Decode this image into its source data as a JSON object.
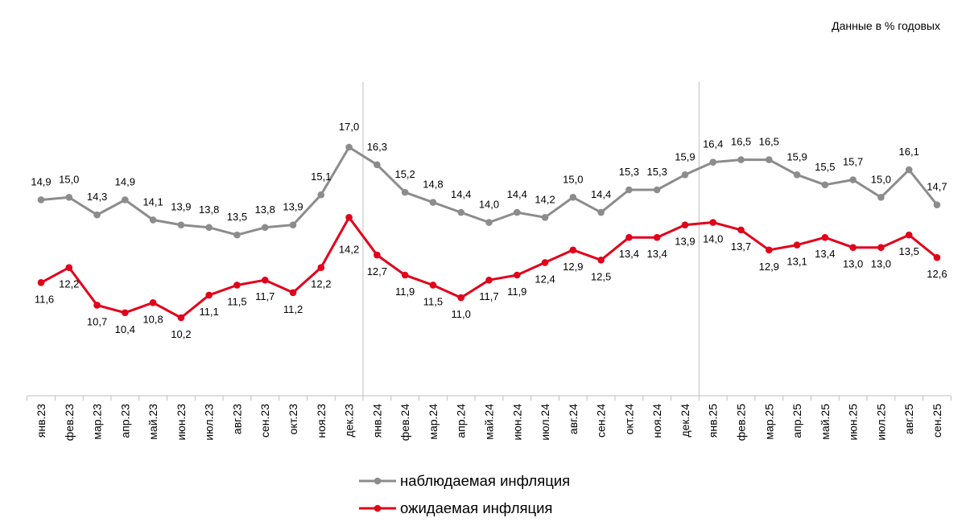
{
  "units_note": "Данные в % годовых",
  "chart_data": {
    "type": "line",
    "title": "",
    "xlabel": "",
    "ylabel": "",
    "ylim": [
      5,
      19
    ],
    "grid": false,
    "legend_position": "bottom",
    "categories": [
      "янв.23",
      "фев.23",
      "мар.23",
      "апр.23",
      "май.23",
      "июн.23",
      "июл.23",
      "авг.23",
      "сен.23",
      "окт.23",
      "ноя.23",
      "дек.23",
      "янв.24",
      "фев.24",
      "мар.24",
      "апр.24",
      "май.24",
      "июн.24",
      "июл.24",
      "авг.24",
      "сен.24",
      "окт.24",
      "ноя.24",
      "дек.24",
      "янв.25",
      "фев.25",
      "мар.25",
      "апр.25",
      "май.25",
      "июн.25",
      "июл.25",
      "авг.25",
      "сен.25"
    ],
    "year_separators": [
      "дек.23",
      "дек.24"
    ],
    "series": [
      {
        "name": "наблюдаемая инфляция",
        "color": "#8c8c8c",
        "values": [
          14.9,
          15.0,
          14.3,
          14.9,
          14.1,
          13.9,
          13.8,
          13.5,
          13.8,
          13.9,
          15.1,
          17.0,
          16.3,
          15.2,
          14.8,
          14.4,
          14.0,
          14.4,
          14.2,
          15.0,
          14.4,
          15.3,
          15.3,
          15.9,
          16.4,
          16.5,
          16.5,
          15.9,
          15.5,
          15.7,
          15.0,
          16.1,
          14.7
        ],
        "labels": [
          "14,9",
          "15,0",
          "14,3",
          "14,9",
          "14,1",
          "13,9",
          "13,8",
          "13,5",
          "13,8",
          "13,9",
          "15,1",
          "17,0",
          "16,3",
          "15,2",
          "14,8",
          "14,4",
          "14,0",
          "14,4",
          "14,2",
          "15,0",
          "14,4",
          "15,3",
          "15,3",
          "15,9",
          "16,4",
          "16,5",
          "16,5",
          "15,9",
          "15,5",
          "15,7",
          "15,0",
          "16,1",
          "14,7"
        ]
      },
      {
        "name": "ожидаемая инфляция",
        "color": "#e2001a",
        "values": [
          11.6,
          12.2,
          10.7,
          10.4,
          10.8,
          10.2,
          11.1,
          11.5,
          11.7,
          11.2,
          12.2,
          14.2,
          12.7,
          11.9,
          11.5,
          11.0,
          11.7,
          11.9,
          12.4,
          12.9,
          12.5,
          13.4,
          13.4,
          13.9,
          14.0,
          13.7,
          12.9,
          13.1,
          13.4,
          13.0,
          13.0,
          13.5,
          12.6
        ],
        "labels": [
          "11,6",
          "12,2",
          "10,7",
          "10,4",
          "10,8",
          "10,2",
          "11,1",
          "11,5",
          "11,7",
          "11,2",
          "12,2",
          "14,2",
          "12,7",
          "11,9",
          "11,5",
          "11,0",
          "11,7",
          "11,9",
          "12,4",
          "12,9",
          "12,5",
          "13,4",
          "13,4",
          "13,9",
          "14,0",
          "13,7",
          "12,9",
          "13,1",
          "13,4",
          "13,0",
          "13,0",
          "13,5",
          "12,6"
        ]
      }
    ]
  }
}
